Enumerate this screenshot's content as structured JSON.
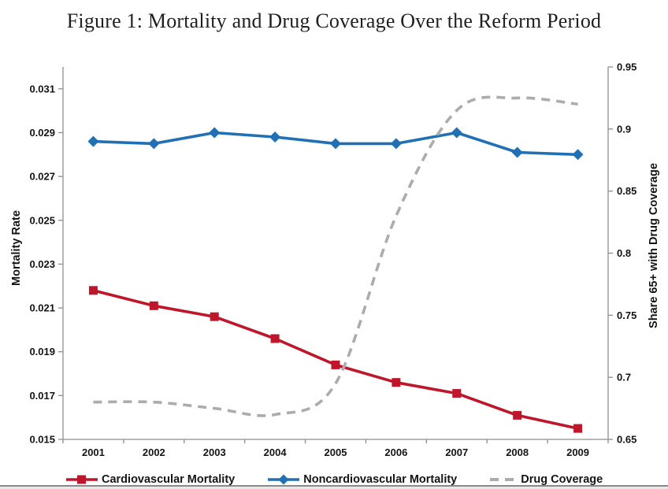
{
  "figure": {
    "title": "Figure 1: Mortality and Drug Coverage Over the Reform Period"
  },
  "chart_data": {
    "type": "line",
    "title": "Figure 1: Mortality and Drug Coverage Over the Reform Period",
    "categories": [
      "2001",
      "2002",
      "2003",
      "2004",
      "2005",
      "2006",
      "2007",
      "2008",
      "2009"
    ],
    "series": [
      {
        "name": "Cardiovascular Mortality",
        "axis": "left",
        "color": "#c0162c",
        "marker": "square",
        "line_style": "solid",
        "smooth": false,
        "values": [
          0.0218,
          0.0211,
          0.0206,
          0.0196,
          0.0184,
          0.0176,
          0.0171,
          0.0161,
          0.0155
        ]
      },
      {
        "name": "Noncardiovascular Mortality",
        "axis": "left",
        "color": "#2170b5",
        "marker": "diamond",
        "line_style": "solid",
        "smooth": false,
        "values": [
          0.0286,
          0.0285,
          0.029,
          0.0288,
          0.0285,
          0.0285,
          0.029,
          0.0281,
          0.028
        ]
      },
      {
        "name": "Drug Coverage",
        "axis": "right",
        "color": "#acacac",
        "marker": "none",
        "line_style": "dashed",
        "smooth": true,
        "values": [
          0.68,
          0.68,
          0.675,
          0.67,
          0.695,
          0.83,
          0.915,
          0.925,
          0.92
        ]
      }
    ],
    "left_axis": {
      "label": "Mortality Rate",
      "tick_labels": [
        "0.015",
        "0.017",
        "0.019",
        "0.021",
        "0.023",
        "0.025",
        "0.027",
        "0.029",
        "0.031"
      ],
      "ticks": [
        0.015,
        0.017,
        0.019,
        0.021,
        0.023,
        0.025,
        0.027,
        0.029,
        0.031
      ],
      "range": [
        0.015,
        0.032
      ]
    },
    "right_axis": {
      "label": "Share 65+ with Drug Coverage",
      "tick_labels": [
        "0.65",
        "0.7",
        "0.75",
        "0.8",
        "0.85",
        "0.9",
        "0.95"
      ],
      "ticks": [
        0.65,
        0.7,
        0.75,
        0.8,
        0.85,
        0.9,
        0.95
      ],
      "range": [
        0.65,
        0.95
      ]
    },
    "x_axis": {
      "label": ""
    },
    "grid": false,
    "legend_position": "bottom"
  }
}
